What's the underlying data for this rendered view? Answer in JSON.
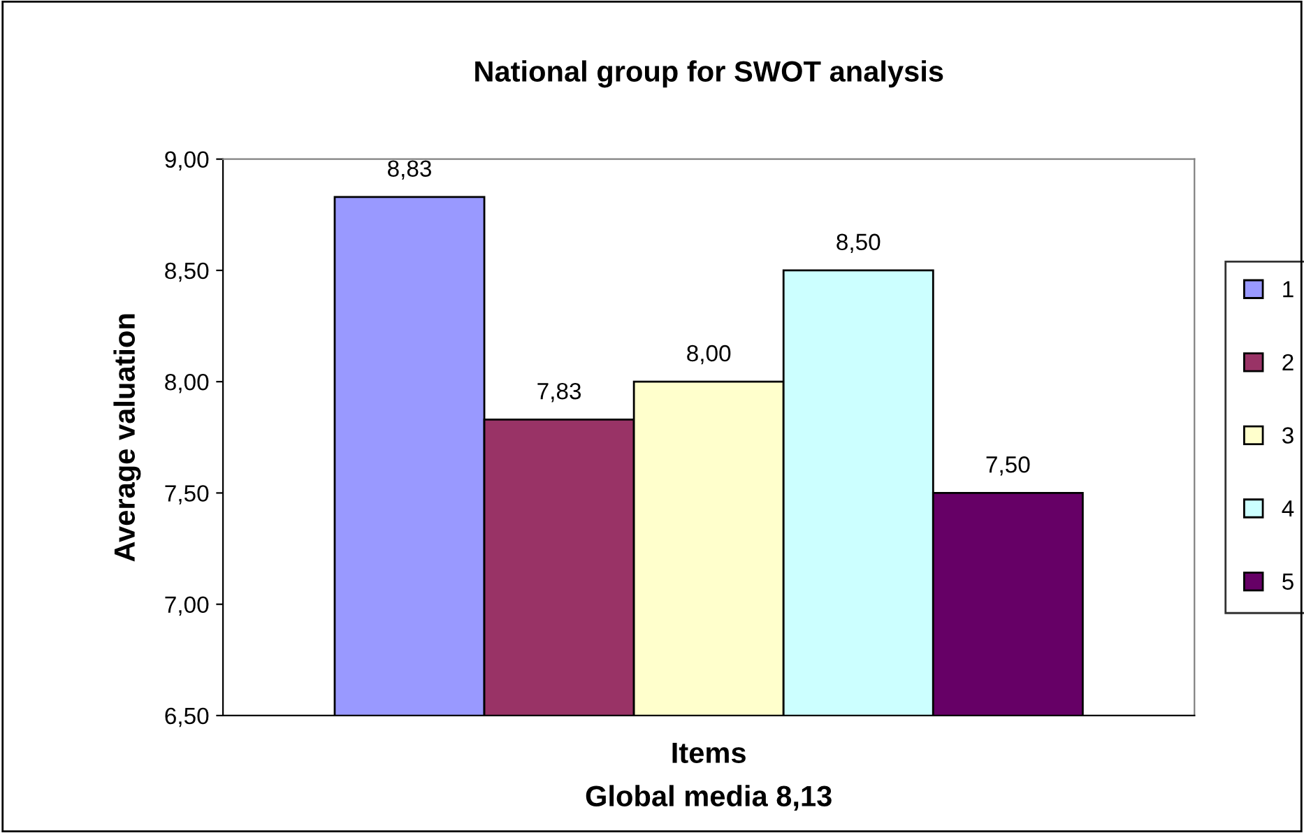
{
  "chart_data": {
    "type": "bar",
    "title": "National group for SWOT analysis",
    "xlabel": "Items",
    "ylabel": "Average valuation",
    "annotations": [
      "Global media 8,13"
    ],
    "categories": [
      null
    ],
    "series": [
      {
        "name": "1",
        "color": "#9999ff",
        "values": [
          8.83
        ],
        "value_labels": [
          "8,83"
        ]
      },
      {
        "name": "2",
        "color": "#993366",
        "values": [
          7.83
        ],
        "value_labels": [
          "7,83"
        ]
      },
      {
        "name": "3",
        "color": "#ffffcc",
        "values": [
          8.0
        ],
        "value_labels": [
          "8,00"
        ]
      },
      {
        "name": "4",
        "color": "#ccffff",
        "values": [
          8.5
        ],
        "value_labels": [
          "8,50"
        ]
      },
      {
        "name": "5",
        "color": "#660066",
        "values": [
          7.5
        ],
        "value_labels": [
          "7,50"
        ]
      }
    ],
    "ylim": [
      6.5,
      9.0
    ],
    "yticks": [
      {
        "value": 6.5,
        "label": "6,50"
      },
      {
        "value": 7.0,
        "label": "7,00"
      },
      {
        "value": 7.5,
        "label": "7,50"
      },
      {
        "value": 8.0,
        "label": "8,00"
      },
      {
        "value": 8.5,
        "label": "8,50"
      },
      {
        "value": 9.0,
        "label": "9,00"
      }
    ],
    "grid": false,
    "legend": "right"
  }
}
